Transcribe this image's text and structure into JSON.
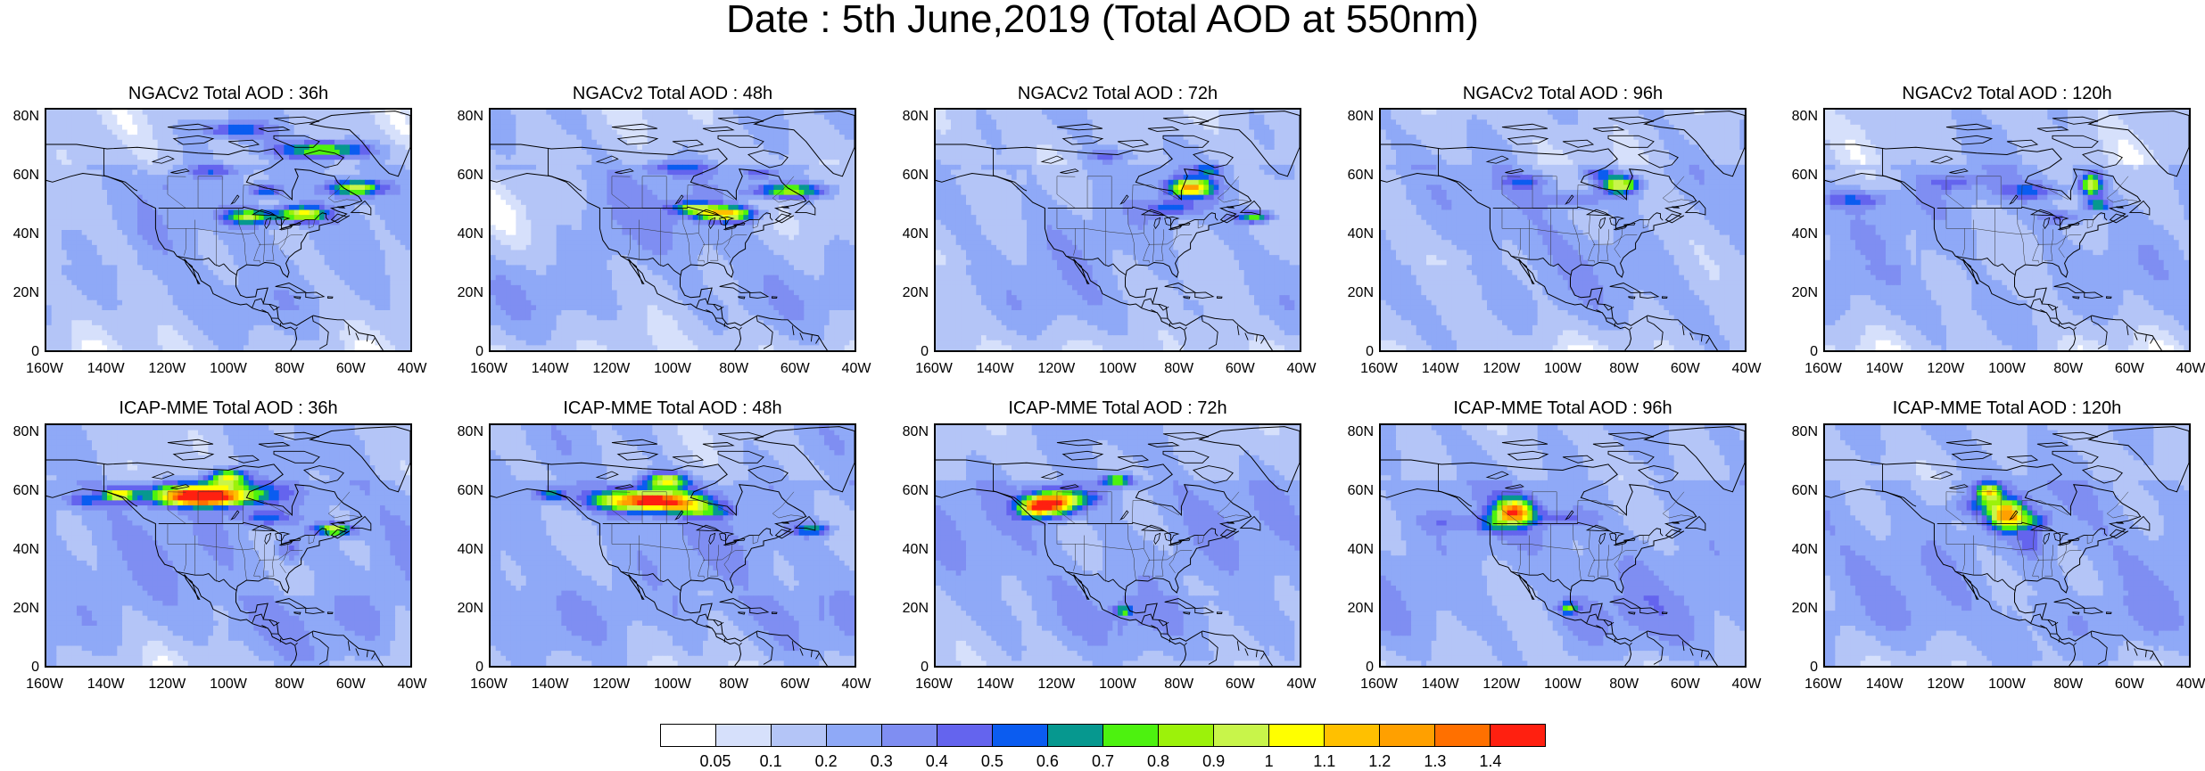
{
  "title": "Date : 5th June,2019 (Total AOD at 550nm)",
  "panels": [
    {
      "title": "NGACv2 Total AOD : 36h",
      "model": "NGACv2",
      "lead": "36h"
    },
    {
      "title": "NGACv2 Total AOD : 48h",
      "model": "NGACv2",
      "lead": "48h"
    },
    {
      "title": "NGACv2 Total AOD : 72h",
      "model": "NGACv2",
      "lead": "72h"
    },
    {
      "title": "NGACv2 Total AOD : 96h",
      "model": "NGACv2",
      "lead": "96h"
    },
    {
      "title": "NGACv2 Total AOD : 120h",
      "model": "NGACv2",
      "lead": "120h"
    },
    {
      "title": "ICAP-MME Total AOD : 36h",
      "model": "ICAP-MME",
      "lead": "36h"
    },
    {
      "title": "ICAP-MME Total AOD : 48h",
      "model": "ICAP-MME",
      "lead": "48h"
    },
    {
      "title": "ICAP-MME Total AOD : 72h",
      "model": "ICAP-MME",
      "lead": "72h"
    },
    {
      "title": "ICAP-MME Total AOD : 96h",
      "model": "ICAP-MME",
      "lead": "96h"
    },
    {
      "title": "ICAP-MME Total AOD : 120h",
      "model": "ICAP-MME",
      "lead": "120h"
    }
  ],
  "lat_labels": [
    "80N",
    "60N",
    "40N",
    "20N",
    "0"
  ],
  "lon_labels": [
    "160W",
    "140W",
    "120W",
    "100W",
    "80W",
    "60W",
    "40W"
  ],
  "colorbar": {
    "labels": [
      "0.05",
      "0.1",
      "0.2",
      "0.3",
      "0.4",
      "0.5",
      "0.6",
      "0.7",
      "0.8",
      "0.9",
      "1",
      "1.1",
      "1.2",
      "1.3",
      "1.4"
    ],
    "colors": [
      "#ffffff",
      "#d6e0fb",
      "#b4c5f7",
      "#8fa9f7",
      "#7f8ef2",
      "#6464ee",
      "#0b5cf0",
      "#06988f",
      "#4df20f",
      "#9cf20a",
      "#c8f54a",
      "#ffff00",
      "#ffc000",
      "#ffa000",
      "#ff7000",
      "#ff2010"
    ]
  }
}
